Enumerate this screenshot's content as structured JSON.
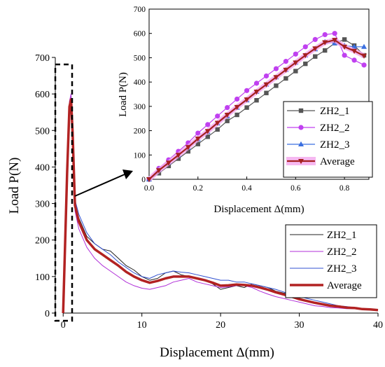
{
  "chart_data": [
    {
      "type": "line",
      "xlabel": "Displacement Δ(mm)",
      "ylabel": "Load P(N)",
      "xlim": [
        -1,
        40
      ],
      "ylim": [
        0,
        700
      ],
      "xticks": [
        "0",
        "10",
        "20",
        "30",
        "40"
      ],
      "yticks": [
        "0",
        "100",
        "200",
        "300",
        "400",
        "500",
        "600",
        "700"
      ],
      "grid": false,
      "legend": "bottom-right",
      "series": [
        {
          "name": "ZH2_1",
          "color": "#222222",
          "width": 1,
          "x": [
            0,
            0.2,
            0.5,
            0.8,
            1.0,
            1.2,
            1.5,
            2,
            3,
            4,
            5,
            6,
            7,
            8,
            9,
            10,
            11,
            12,
            13,
            14,
            15,
            16,
            17,
            18,
            19,
            20,
            21,
            22,
            23,
            24,
            25,
            26,
            27,
            28,
            29,
            30,
            31,
            32,
            33,
            34,
            35,
            36,
            37,
            38,
            39,
            40
          ],
          "y": [
            0,
            150,
            380,
            560,
            590,
            500,
            300,
            260,
            210,
            190,
            175,
            170,
            150,
            130,
            118,
            100,
            90,
            95,
            110,
            115,
            105,
            100,
            95,
            90,
            80,
            65,
            70,
            75,
            70,
            80,
            75,
            70,
            60,
            55,
            50,
            40,
            35,
            30,
            25,
            20,
            20,
            15,
            15,
            10,
            10,
            8
          ]
        },
        {
          "name": "ZH2_2",
          "color": "#b02fd8",
          "width": 1,
          "x": [
            0,
            0.2,
            0.5,
            0.8,
            1.0,
            1.2,
            1.5,
            2,
            3,
            4,
            5,
            6,
            7,
            8,
            9,
            10,
            11,
            12,
            13,
            14,
            15,
            16,
            17,
            18,
            19,
            20,
            21,
            22,
            23,
            24,
            25,
            26,
            27,
            28,
            29,
            30,
            31,
            32,
            33,
            34,
            35,
            36,
            37,
            38,
            39,
            40
          ],
          "y": [
            0,
            160,
            400,
            580,
            600,
            500,
            280,
            230,
            180,
            150,
            130,
            115,
            100,
            85,
            75,
            68,
            65,
            70,
            75,
            85,
            90,
            95,
            85,
            80,
            75,
            70,
            72,
            75,
            75,
            70,
            60,
            52,
            45,
            40,
            35,
            30,
            25,
            20,
            18,
            15,
            14,
            12,
            12,
            10,
            10,
            8
          ]
        },
        {
          "name": "ZH2_3",
          "color": "#3050d0",
          "width": 1,
          "x": [
            0,
            0.2,
            0.5,
            0.8,
            1.0,
            1.2,
            1.5,
            2,
            3,
            4,
            5,
            6,
            7,
            8,
            9,
            10,
            11,
            12,
            13,
            14,
            15,
            16,
            17,
            18,
            19,
            20,
            21,
            22,
            23,
            24,
            25,
            26,
            27,
            28,
            29,
            30,
            31,
            32,
            33,
            34,
            35,
            36,
            37,
            38,
            39,
            40
          ],
          "y": [
            0,
            150,
            370,
            545,
            570,
            480,
            310,
            270,
            220,
            190,
            175,
            160,
            140,
            125,
            110,
            100,
            95,
            105,
            110,
            115,
            112,
            110,
            105,
            100,
            95,
            90,
            90,
            85,
            85,
            80,
            75,
            70,
            65,
            58,
            50,
            45,
            40,
            35,
            30,
            25,
            20,
            18,
            15,
            12,
            10,
            8
          ]
        },
        {
          "name": "Average",
          "color": "#b22222",
          "width": 3.5,
          "x": [
            0,
            0.2,
            0.5,
            0.8,
            1.0,
            1.2,
            1.5,
            2,
            3,
            4,
            5,
            6,
            7,
            8,
            9,
            10,
            11,
            12,
            13,
            14,
            15,
            16,
            17,
            18,
            19,
            20,
            21,
            22,
            23,
            24,
            25,
            26,
            27,
            28,
            29,
            30,
            31,
            32,
            33,
            34,
            35,
            36,
            37,
            38,
            39,
            40
          ],
          "y": [
            0,
            155,
            385,
            565,
            585,
            495,
            295,
            250,
            200,
            175,
            160,
            145,
            130,
            113,
            100,
            90,
            83,
            88,
            95,
            100,
            100,
            100,
            95,
            90,
            83,
            75,
            76,
            78,
            77,
            75,
            70,
            64,
            57,
            51,
            45,
            38,
            33,
            28,
            24,
            20,
            18,
            15,
            14,
            11,
            10,
            8
          ]
        }
      ]
    },
    {
      "type": "line",
      "xlabel": "Displacement Δ(mm)",
      "ylabel": "Load P(N)",
      "xlim": [
        0,
        0.9
      ],
      "ylim": [
        0,
        700
      ],
      "xticks": [
        "0.0",
        "0.2",
        "0.4",
        "0.6",
        "0.8"
      ],
      "yticks": [
        "0",
        "100",
        "200",
        "300",
        "400",
        "500",
        "600",
        "700"
      ],
      "grid": false,
      "legend": "bottom-right",
      "series": [
        {
          "name": "ZH2_1",
          "color": "#555555",
          "marker": "square",
          "x": [
            0,
            0.04,
            0.08,
            0.12,
            0.16,
            0.2,
            0.24,
            0.28,
            0.32,
            0.36,
            0.4,
            0.44,
            0.48,
            0.52,
            0.56,
            0.6,
            0.64,
            0.68,
            0.72,
            0.76,
            0.8,
            0.84,
            0.88
          ],
          "y": [
            0,
            25,
            55,
            85,
            115,
            145,
            175,
            205,
            240,
            265,
            295,
            325,
            355,
            385,
            415,
            445,
            475,
            505,
            530,
            560,
            575,
            550,
            510
          ]
        },
        {
          "name": "ZH2_2",
          "color": "#c040f0",
          "marker": "circle",
          "x": [
            0,
            0.04,
            0.08,
            0.12,
            0.16,
            0.2,
            0.24,
            0.28,
            0.32,
            0.36,
            0.4,
            0.44,
            0.48,
            0.52,
            0.56,
            0.6,
            0.64,
            0.68,
            0.72,
            0.76,
            0.8,
            0.84,
            0.88
          ],
          "y": [
            0,
            45,
            80,
            115,
            150,
            190,
            225,
            260,
            295,
            330,
            365,
            395,
            425,
            455,
            485,
            515,
            545,
            575,
            595,
            600,
            510,
            490,
            470
          ]
        },
        {
          "name": "ZH2_3",
          "color": "#3a6fe0",
          "marker": "triangle",
          "x": [
            0,
            0.04,
            0.08,
            0.12,
            0.16,
            0.2,
            0.24,
            0.28,
            0.32,
            0.36,
            0.4,
            0.44,
            0.48,
            0.52,
            0.56,
            0.6,
            0.64,
            0.68,
            0.72,
            0.76,
            0.8,
            0.84,
            0.88
          ],
          "y": [
            0,
            40,
            70,
            100,
            130,
            165,
            195,
            230,
            260,
            295,
            325,
            360,
            390,
            420,
            450,
            480,
            510,
            535,
            565,
            560,
            550,
            545,
            545
          ]
        },
        {
          "name": "Average",
          "color": "#a52020",
          "marker": "triangle-down",
          "x": [
            0,
            0.04,
            0.08,
            0.12,
            0.16,
            0.2,
            0.24,
            0.28,
            0.32,
            0.36,
            0.4,
            0.44,
            0.48,
            0.52,
            0.56,
            0.6,
            0.64,
            0.68,
            0.72,
            0.76,
            0.8,
            0.84,
            0.88
          ],
          "y": [
            0,
            37,
            68,
            100,
            132,
            167,
            198,
            232,
            265,
            297,
            328,
            360,
            390,
            420,
            450,
            480,
            510,
            538,
            563,
            573,
            545,
            528,
            508
          ]
        }
      ]
    }
  ]
}
